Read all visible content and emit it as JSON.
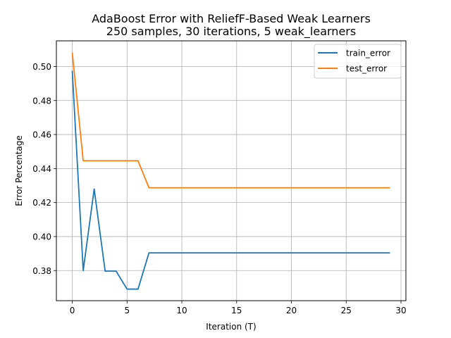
{
  "chart_data": {
    "type": "line",
    "title": [
      "AdaBoost Error with ReliefF-Based Weak Learners",
      "250 samples, 30 iterations, 5 weak_learners"
    ],
    "xlabel": "Iteration (T)",
    "ylabel": "Error Percentage",
    "xlim": [
      -1.45,
      30.45
    ],
    "ylim": [
      0.3623,
      0.5151
    ],
    "xticks": [
      0,
      5,
      10,
      15,
      20,
      25,
      30
    ],
    "yticks": [
      0.38,
      0.4,
      0.42,
      0.44,
      0.46,
      0.48,
      0.5
    ],
    "ytick_labels": [
      "0.38",
      "0.40",
      "0.42",
      "0.44",
      "0.46",
      "0.48",
      "0.50"
    ],
    "grid": true,
    "legend_position": "top-right",
    "x": [
      0,
      1,
      2,
      3,
      4,
      5,
      6,
      7,
      8,
      9,
      10,
      11,
      12,
      13,
      14,
      15,
      16,
      17,
      18,
      19,
      20,
      21,
      22,
      23,
      24,
      25,
      26,
      27,
      28,
      29
    ],
    "series": [
      {
        "name": "train_error",
        "color": "#1f77b4",
        "values": [
          0.4975,
          0.38,
          0.428,
          0.3797,
          0.3797,
          0.3691,
          0.3691,
          0.3904,
          0.3904,
          0.3904,
          0.3904,
          0.3904,
          0.3904,
          0.3904,
          0.3904,
          0.3904,
          0.3904,
          0.3904,
          0.3904,
          0.3904,
          0.3904,
          0.3904,
          0.3904,
          0.3904,
          0.3904,
          0.3904,
          0.3904,
          0.3904,
          0.3904,
          0.3904
        ]
      },
      {
        "name": "test_error",
        "color": "#ff7f0e",
        "values": [
          0.5082,
          0.4446,
          0.4446,
          0.4446,
          0.4446,
          0.4446,
          0.4446,
          0.4287,
          0.4287,
          0.4287,
          0.4287,
          0.4287,
          0.4287,
          0.4287,
          0.4287,
          0.4287,
          0.4287,
          0.4287,
          0.4287,
          0.4287,
          0.4287,
          0.4287,
          0.4287,
          0.4287,
          0.4287,
          0.4287,
          0.4287,
          0.4287,
          0.4287,
          0.4287
        ]
      }
    ]
  }
}
